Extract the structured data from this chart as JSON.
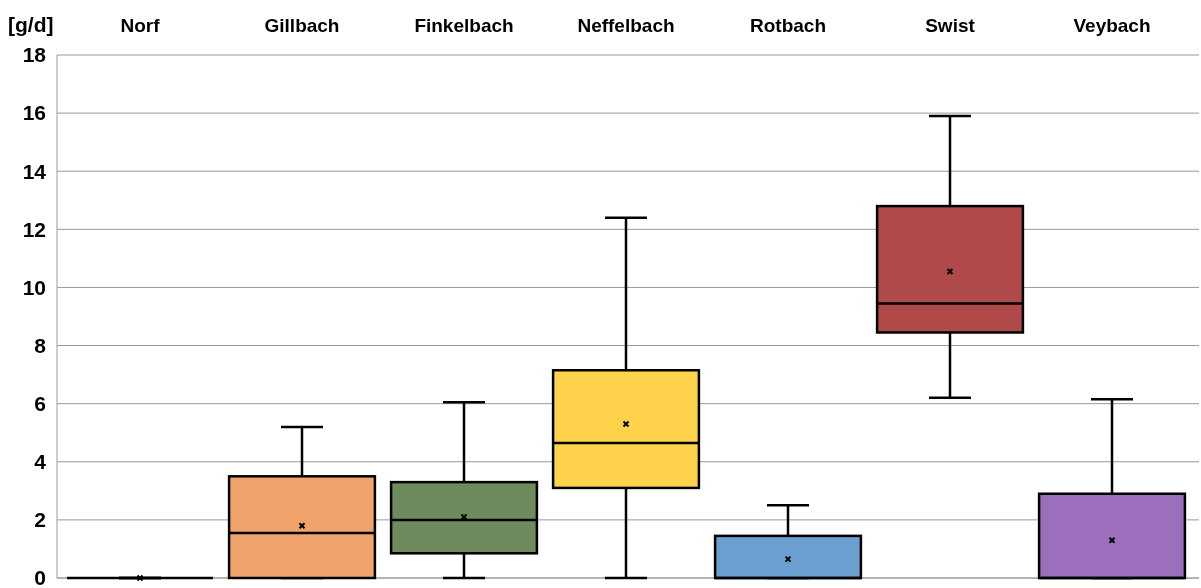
{
  "chart_data": {
    "type": "box",
    "ylabel": "[g/d]",
    "categories": [
      "Norf",
      "Gillbach",
      "Finkelbach",
      "Neffelbach",
      "Rotbach",
      "Swist",
      "Veybach"
    ],
    "colors": [
      "#000000",
      "#f0a46c",
      "#6f8b5e",
      "#fed24a",
      "#6b9fcf",
      "#b04a4a",
      "#9b6fbb"
    ],
    "boxes": [
      {
        "low": 0,
        "q1": 0,
        "median": 0,
        "q3": 0,
        "high": 0,
        "mean": 0
      },
      {
        "low": 0,
        "q1": 0,
        "median": 1.55,
        "q3": 3.5,
        "high": 5.2,
        "mean": 1.8
      },
      {
        "low": 0,
        "q1": 0.85,
        "median": 2.0,
        "q3": 3.3,
        "high": 6.05,
        "mean": 2.1
      },
      {
        "low": 0,
        "q1": 3.1,
        "median": 4.65,
        "q3": 7.15,
        "high": 12.4,
        "mean": 5.3
      },
      {
        "low": 0,
        "q1": 0,
        "median": 0,
        "q3": 1.45,
        "high": 2.5,
        "mean": 0.65
      },
      {
        "low": 6.2,
        "q1": 8.45,
        "median": 9.45,
        "q3": 12.8,
        "high": 15.9,
        "mean": 10.55
      },
      {
        "low": 0,
        "q1": 0,
        "median": 0,
        "q3": 2.9,
        "high": 6.15,
        "mean": 1.3
      }
    ],
    "ylim": [
      0,
      18
    ],
    "yticks": [
      0,
      2,
      4,
      6,
      8,
      10,
      12,
      14,
      16,
      18
    ],
    "grid": "y",
    "marker": "cross"
  }
}
